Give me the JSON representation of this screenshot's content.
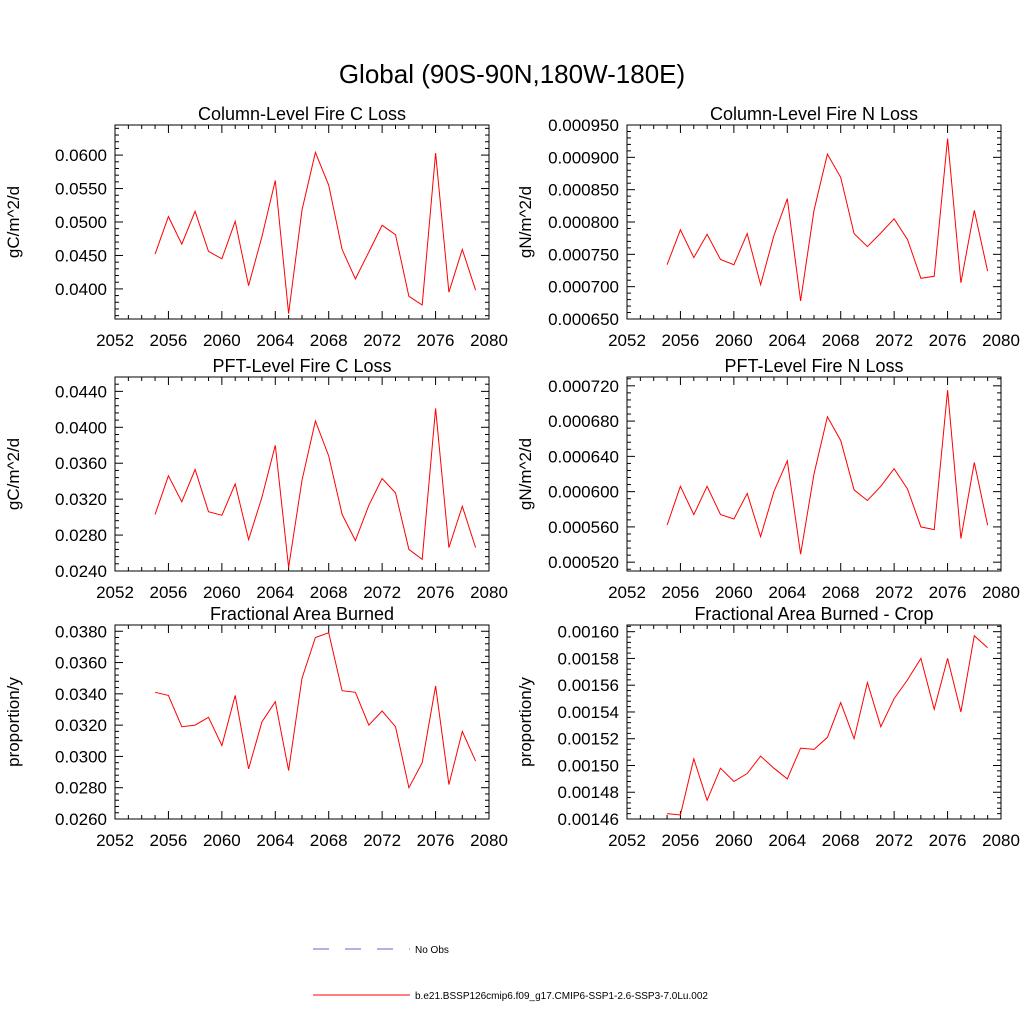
{
  "figure_title": "Global (90S-90N,180W-180E)",
  "legend": {
    "obs_label": "No Obs",
    "obs_color": "#6666cc",
    "model_label": "b.e21.BSSP126cmip6.f09_g17.CMIP6-SSP1-2.6-SSP3-7.0Lu.002",
    "model_color": "#ff0000"
  },
  "chart_data": [
    {
      "type": "line",
      "title": "Column-Level Fire C Loss",
      "ylabel": "gC/m^2/d",
      "xlabel": "",
      "xlim": [
        2052,
        2080
      ],
      "ylim": [
        0.0355,
        0.0645
      ],
      "x_ticks": [
        2052,
        2056,
        2060,
        2064,
        2068,
        2072,
        2076,
        2080
      ],
      "y_ticks": [
        0.04,
        0.045,
        0.05,
        0.055,
        0.06
      ],
      "y_tick_labels": [
        "0.0400",
        "0.0450",
        "0.0500",
        "0.0550",
        "0.0600"
      ],
      "x": [
        2055,
        2056,
        2057,
        2058,
        2059,
        2060,
        2061,
        2062,
        2063,
        2064,
        2065,
        2066,
        2067,
        2068,
        2069,
        2070,
        2071,
        2072,
        2073,
        2074,
        2075,
        2076,
        2077,
        2078,
        2079
      ],
      "series": [
        {
          "name": "b.e21.BSSP126cmip6.f09_g17.CMIP6-SSP1-2.6-SSP3-7.0Lu.002",
          "color": "#ff0000",
          "values": [
            0.0452,
            0.0508,
            0.0467,
            0.0516,
            0.0456,
            0.0445,
            0.0501,
            0.0405,
            0.0478,
            0.0562,
            0.0363,
            0.0518,
            0.0604,
            0.0555,
            0.0459,
            0.0415,
            0.0455,
            0.0495,
            0.0481,
            0.0389,
            0.0376,
            0.0603,
            0.0395,
            0.0459,
            0.0398
          ]
        }
      ]
    },
    {
      "type": "line",
      "title": "Column-Level Fire N Loss",
      "ylabel": "gN/m^2/d",
      "xlabel": "",
      "xlim": [
        2052,
        2080
      ],
      "ylim": [
        0.00065,
        0.00095
      ],
      "x_ticks": [
        2052,
        2056,
        2060,
        2064,
        2068,
        2072,
        2076,
        2080
      ],
      "y_ticks": [
        0.00065,
        0.0007,
        0.00075,
        0.0008,
        0.00085,
        0.0009,
        0.00095
      ],
      "y_tick_labels": [
        "0.000650",
        "0.000700",
        "0.000750",
        "0.000800",
        "0.000850",
        "0.000900",
        "0.000950"
      ],
      "x": [
        2055,
        2056,
        2057,
        2058,
        2059,
        2060,
        2061,
        2062,
        2063,
        2064,
        2065,
        2066,
        2067,
        2068,
        2069,
        2070,
        2071,
        2072,
        2073,
        2074,
        2075,
        2076,
        2077,
        2078,
        2079
      ],
      "series": [
        {
          "name": "b.e21.BSSP126cmip6.f09_g17.CMIP6-SSP1-2.6-SSP3-7.0Lu.002",
          "color": "#ff0000",
          "values": [
            0.000734,
            0.000788,
            0.000745,
            0.000781,
            0.000742,
            0.000734,
            0.000782,
            0.000703,
            0.000779,
            0.000836,
            0.000678,
            0.000818,
            0.000905,
            0.000869,
            0.000782,
            0.000762,
            0.000783,
            0.000805,
            0.000773,
            0.000713,
            0.000716,
            0.000929,
            0.000706,
            0.000818,
            0.000724
          ]
        }
      ]
    },
    {
      "type": "line",
      "title": "PFT-Level Fire C Loss",
      "ylabel": "gC/m^2/d",
      "xlabel": "",
      "xlim": [
        2052,
        2080
      ],
      "ylim": [
        0.024,
        0.0456
      ],
      "x_ticks": [
        2052,
        2056,
        2060,
        2064,
        2068,
        2072,
        2076,
        2080
      ],
      "y_ticks": [
        0.024,
        0.028,
        0.032,
        0.036,
        0.04,
        0.044
      ],
      "y_tick_labels": [
        "0.0240",
        "0.0280",
        "0.0320",
        "0.0360",
        "0.0400",
        "0.0440"
      ],
      "x": [
        2055,
        2056,
        2057,
        2058,
        2059,
        2060,
        2061,
        2062,
        2063,
        2064,
        2065,
        2066,
        2067,
        2068,
        2069,
        2070,
        2071,
        2072,
        2073,
        2074,
        2075,
        2076,
        2077,
        2078,
        2079
      ],
      "series": [
        {
          "name": "b.e21.BSSP126cmip6.f09_g17.CMIP6-SSP1-2.6-SSP3-7.0Lu.002",
          "color": "#ff0000",
          "values": [
            0.0303,
            0.0346,
            0.0317,
            0.0353,
            0.0306,
            0.0302,
            0.0337,
            0.0275,
            0.0322,
            0.038,
            0.0244,
            0.0341,
            0.0407,
            0.0368,
            0.0303,
            0.0274,
            0.0313,
            0.0343,
            0.0327,
            0.0264,
            0.0253,
            0.0421,
            0.0266,
            0.0312,
            0.0266
          ]
        }
      ]
    },
    {
      "type": "line",
      "title": "PFT-Level Fire N Loss",
      "ylabel": "gN/m^2/d",
      "xlabel": "",
      "xlim": [
        2052,
        2080
      ],
      "ylim": [
        0.00051,
        0.00073
      ],
      "x_ticks": [
        2052,
        2056,
        2060,
        2064,
        2068,
        2072,
        2076,
        2080
      ],
      "y_ticks": [
        0.00052,
        0.00056,
        0.0006,
        0.00064,
        0.00068,
        0.00072
      ],
      "y_tick_labels": [
        "0.000520",
        "0.000560",
        "0.000600",
        "0.000640",
        "0.000680",
        "0.000720"
      ],
      "x": [
        2055,
        2056,
        2057,
        2058,
        2059,
        2060,
        2061,
        2062,
        2063,
        2064,
        2065,
        2066,
        2067,
        2068,
        2069,
        2070,
        2071,
        2072,
        2073,
        2074,
        2075,
        2076,
        2077,
        2078,
        2079
      ],
      "series": [
        {
          "name": "b.e21.BSSP126cmip6.f09_g17.CMIP6-SSP1-2.6-SSP3-7.0Lu.002",
          "color": "#ff0000",
          "values": [
            0.000562,
            0.000606,
            0.000574,
            0.000606,
            0.000574,
            0.000569,
            0.000598,
            0.000549,
            0.0006,
            0.000635,
            0.000529,
            0.00062,
            0.000685,
            0.000658,
            0.000602,
            0.00059,
            0.000606,
            0.000626,
            0.000603,
            0.00056,
            0.000557,
            0.000715,
            0.000547,
            0.000633,
            0.000562
          ]
        }
      ]
    },
    {
      "type": "line",
      "title": "Fractional Area Burned",
      "ylabel": "proportion/y",
      "xlabel": "",
      "xlim": [
        2052,
        2080
      ],
      "ylim": [
        0.026,
        0.0384
      ],
      "x_ticks": [
        2052,
        2056,
        2060,
        2064,
        2068,
        2072,
        2076,
        2080
      ],
      "y_ticks": [
        0.026,
        0.028,
        0.03,
        0.032,
        0.034,
        0.036,
        0.038
      ],
      "y_tick_labels": [
        "0.0260",
        "0.0280",
        "0.0300",
        "0.0320",
        "0.0340",
        "0.0360",
        "0.0380"
      ],
      "x": [
        2055,
        2056,
        2057,
        2058,
        2059,
        2060,
        2061,
        2062,
        2063,
        2064,
        2065,
        2066,
        2067,
        2068,
        2069,
        2070,
        2071,
        2072,
        2073,
        2074,
        2075,
        2076,
        2077,
        2078,
        2079
      ],
      "series": [
        {
          "name": "b.e21.BSSP126cmip6.f09_g17.CMIP6-SSP1-2.6-SSP3-7.0Lu.002",
          "color": "#ff0000",
          "values": [
            0.0341,
            0.0339,
            0.0319,
            0.032,
            0.0325,
            0.0307,
            0.0339,
            0.0292,
            0.0322,
            0.0335,
            0.0291,
            0.035,
            0.0376,
            0.0379,
            0.0342,
            0.0341,
            0.032,
            0.0329,
            0.0319,
            0.028,
            0.0296,
            0.0345,
            0.0282,
            0.0316,
            0.0297
          ]
        }
      ]
    },
    {
      "type": "line",
      "title": "Fractional Area Burned - Crop",
      "ylabel": "proportion/y",
      "xlabel": "",
      "xlim": [
        2052,
        2080
      ],
      "ylim": [
        0.00146,
        0.001605
      ],
      "x_ticks": [
        2052,
        2056,
        2060,
        2064,
        2068,
        2072,
        2076,
        2080
      ],
      "y_ticks": [
        0.00146,
        0.00148,
        0.0015,
        0.00152,
        0.00154,
        0.00156,
        0.00158,
        0.0016
      ],
      "y_tick_labels": [
        "0.00146",
        "0.00148",
        "0.00150",
        "0.00152",
        "0.00154",
        "0.00156",
        "0.00158",
        "0.00160"
      ],
      "x": [
        2055,
        2056,
        2057,
        2058,
        2059,
        2060,
        2061,
        2062,
        2063,
        2064,
        2065,
        2066,
        2067,
        2068,
        2069,
        2070,
        2071,
        2072,
        2073,
        2074,
        2075,
        2076,
        2077,
        2078,
        2079
      ],
      "series": [
        {
          "name": "b.e21.BSSP126cmip6.f09_g17.CMIP6-SSP1-2.6-SSP3-7.0Lu.002",
          "color": "#ff0000",
          "values": [
            0.001464,
            0.001463,
            0.001505,
            0.001474,
            0.001498,
            0.001488,
            0.001494,
            0.001507,
            0.001498,
            0.00149,
            0.001513,
            0.001512,
            0.001521,
            0.001547,
            0.00152,
            0.001562,
            0.001529,
            0.00155,
            0.001564,
            0.00158,
            0.001542,
            0.00158,
            0.00154,
            0.001597,
            0.001588
          ]
        }
      ]
    }
  ]
}
